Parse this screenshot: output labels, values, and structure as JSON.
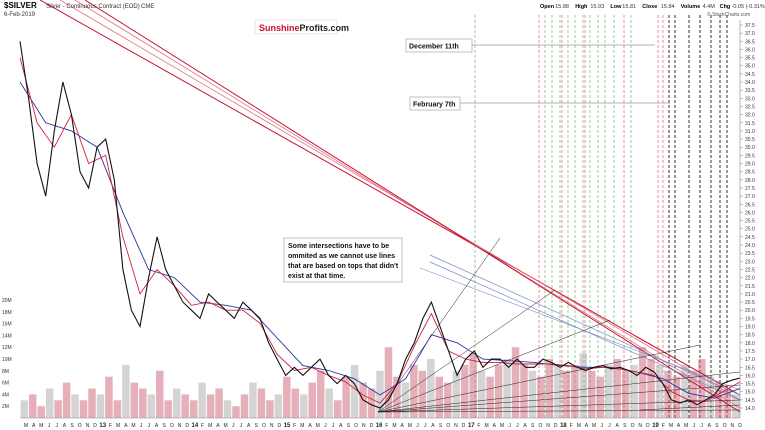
{
  "header": {
    "symbol": "$SILVER",
    "description": "Silver - Continuous Contract (EOD)",
    "exchange": "CME",
    "date": "6-Feb-2019",
    "stats": [
      {
        "label": "Open",
        "value": "15.88"
      },
      {
        "label": "High",
        "value": "15.93"
      },
      {
        "label": "Low",
        "value": "15.81"
      },
      {
        "label": "Close",
        "value": "15.84"
      },
      {
        "label": "Volume",
        "value": "4.4M"
      },
      {
        "label": "Chg",
        "value": "-0.05 (-0.31%)"
      }
    ],
    "copyright": "© StockCharts.com",
    "brand_part1": "Sunshine",
    "brand_part2": "Profits.com",
    "brand_color": "#c8102e"
  },
  "annotations": {
    "dec_label": "December 11th",
    "feb_label": "February 7th",
    "note_lines": [
      "Some intersections have to be",
      "ommited as we cannot use lines",
      "that are based on tops that didn't",
      "exist at that time."
    ]
  },
  "chart_data": {
    "type": "line",
    "title": "$SILVER",
    "subtitle": "Silver - Continuous Contract (EOD)",
    "y_ticks": [
      14.0,
      14.5,
      15.0,
      15.5,
      16.0,
      16.5,
      17.0,
      17.5,
      18.0,
      18.5,
      19.0,
      19.5,
      20.0,
      20.5,
      21.0,
      21.5,
      22.0,
      22.5,
      23.0,
      23.5,
      24.0,
      24.5,
      25.0,
      25.5,
      26.0,
      26.5,
      27.0,
      27.5,
      28.0,
      28.5,
      29.0,
      29.5,
      30.0,
      30.5,
      31.0,
      31.5,
      32.0,
      32.5,
      33.0,
      33.5,
      34.0,
      34.5,
      35.0,
      35.5,
      36.0,
      36.5,
      37.0,
      37.5
    ],
    "ylim": [
      14.0,
      37.5
    ],
    "volume_ticks": [
      "2M",
      "4M",
      "6M",
      "8M",
      "10M",
      "12M",
      "14M",
      "16M",
      "18M",
      "20M"
    ],
    "volume_lim": [
      0,
      20
    ],
    "x_tick_labels": [
      "M",
      "A",
      "M",
      "J",
      "J",
      "A",
      "S",
      "O",
      "N",
      "D",
      "13",
      "F",
      "M",
      "A",
      "M",
      "J",
      "J",
      "A",
      "S",
      "O",
      "N",
      "D",
      "14",
      "F",
      "M",
      "A",
      "M",
      "J",
      "J",
      "A",
      "S",
      "O",
      "N",
      "D",
      "15",
      "F",
      "M",
      "A",
      "M",
      "J",
      "J",
      "A",
      "S",
      "O",
      "N",
      "D",
      "16",
      "F",
      "M",
      "A",
      "M",
      "J",
      "J",
      "A",
      "S",
      "O",
      "N",
      "D",
      "17",
      "F",
      "M",
      "A",
      "M",
      "J",
      "J",
      "A",
      "S",
      "O",
      "N",
      "D",
      "18",
      "F",
      "M",
      "A",
      "M",
      "J",
      "J",
      "A",
      "S",
      "O",
      "N",
      "D",
      "19",
      "F",
      "M",
      "A",
      "M",
      "J",
      "J",
      "A",
      "S",
      "O",
      "N",
      "D"
    ],
    "x_year_labels": [
      "13",
      "14",
      "15",
      "16",
      "17",
      "18",
      "19"
    ],
    "price": {
      "x": [
        0,
        1,
        2,
        3,
        4,
        5,
        6,
        7,
        8,
        9,
        10,
        11,
        12,
        13,
        14,
        15,
        16,
        17,
        18,
        19,
        20,
        21,
        22,
        23,
        24,
        25,
        26,
        27,
        28,
        29,
        30,
        31,
        32,
        33,
        34,
        35,
        36,
        37,
        38,
        39,
        40,
        41,
        42,
        43,
        44,
        45,
        46,
        47,
        48,
        49,
        50,
        51,
        52,
        53,
        54,
        55,
        56,
        57,
        58,
        59,
        60,
        61,
        62,
        63,
        64,
        65,
        66,
        67,
        68,
        69,
        70,
        71,
        72,
        73,
        74,
        75,
        76,
        77,
        78,
        79,
        80,
        81,
        82,
        83,
        84
      ],
      "values": [
        36.5,
        33.0,
        29.0,
        27.0,
        31.0,
        34.0,
        32.0,
        28.5,
        27.5,
        30.0,
        30.5,
        28.0,
        22.5,
        20.0,
        19.0,
        22.0,
        24.5,
        22.5,
        21.5,
        20.5,
        20.0,
        19.5,
        21.0,
        20.5,
        20.0,
        19.5,
        20.5,
        20.0,
        19.5,
        18.0,
        17.0,
        16.0,
        16.5,
        16.0,
        16.5,
        17.0,
        16.0,
        15.5,
        16.0,
        15.5,
        14.5,
        14.2,
        14.0,
        14.5,
        15.5,
        17.0,
        18.0,
        19.5,
        20.5,
        19.0,
        17.5,
        16.0,
        17.0,
        17.5,
        16.5,
        17.0,
        17.0,
        16.5,
        17.0,
        16.5,
        16.5,
        17.0,
        16.8,
        16.5,
        16.8,
        16.5,
        16.3,
        16.5,
        16.6,
        16.4,
        16.5,
        16.3,
        16.0,
        16.5,
        16.2,
        15.5,
        14.5,
        14.3,
        14.5,
        14.2,
        14.5,
        14.8,
        15.5,
        15.7,
        15.84
      ]
    },
    "moving_average_short": {
      "x": [
        0,
        2,
        4,
        6,
        8,
        10,
        12,
        14,
        16,
        18,
        20,
        22,
        24,
        26,
        28,
        30,
        32,
        34,
        36,
        38,
        40,
        42,
        44,
        46,
        48,
        50,
        52,
        54,
        56,
        58,
        60,
        62,
        64,
        66,
        68,
        70,
        72,
        74,
        76,
        78,
        80,
        82,
        84
      ],
      "values": [
        35.5,
        31.5,
        30.0,
        32.0,
        29.0,
        29.5,
        24.5,
        21.0,
        22.5,
        21.5,
        20.3,
        20.5,
        20.0,
        20.0,
        19.2,
        17.3,
        16.3,
        16.5,
        16.0,
        15.6,
        14.8,
        14.3,
        15.5,
        17.8,
        19.8,
        17.5,
        17.0,
        16.8,
        16.8,
        16.7,
        16.7,
        16.7,
        16.6,
        16.4,
        16.5,
        16.4,
        16.2,
        16.0,
        15.0,
        14.5,
        14.4,
        15.0,
        15.6
      ]
    },
    "moving_average_long": {
      "x": [
        0,
        3,
        6,
        9,
        12,
        15,
        18,
        21,
        24,
        27,
        30,
        33,
        36,
        39,
        42,
        45,
        48,
        51,
        54,
        57,
        60,
        63,
        66,
        69,
        72,
        75,
        78,
        81,
        84
      ],
      "values": [
        34.0,
        31.5,
        31.0,
        30.0,
        26.0,
        22.5,
        22.0,
        20.5,
        20.3,
        20.0,
        18.3,
        16.6,
        16.3,
        15.8,
        14.8,
        15.8,
        18.5,
        18.0,
        17.0,
        16.9,
        16.8,
        16.6,
        16.5,
        16.5,
        16.2,
        15.8,
        14.9,
        14.6,
        15.2
      ]
    },
    "volume": {
      "description": "daily volume histogram, values in millions",
      "values": [
        3,
        4,
        2,
        5,
        3,
        6,
        4,
        3,
        5,
        4,
        7,
        3,
        9,
        6,
        5,
        4,
        8,
        3,
        5,
        4,
        3,
        6,
        4,
        5,
        3,
        2,
        4,
        6,
        5,
        3,
        4,
        7,
        5,
        4,
        6,
        8,
        5,
        3,
        7,
        9,
        6,
        5,
        8,
        12,
        7,
        6,
        9,
        8,
        10,
        7,
        6,
        8,
        9,
        11,
        8,
        7,
        9,
        10,
        12,
        9,
        8,
        7,
        10,
        9,
        8,
        9,
        11,
        8,
        7,
        9,
        10,
        8,
        9,
        12,
        10,
        9,
        8,
        7,
        9,
        8,
        10,
        7,
        6,
        5,
        4
      ]
    },
    "colors": {
      "price": "#111111",
      "ma_short": "#d02040",
      "ma_long": "#3030a0",
      "trend_red": "#c8102e",
      "trend_pink": "#e07080",
      "trend_black": "#222222",
      "fan_blue": "#7a8cc8",
      "green_cycle": "#4caf50",
      "red_cycle": "#e04050",
      "black_cycle": "#000000",
      "volume_bar": "#d07080",
      "volume_bar_alt": "#b0b0b0",
      "label_line": "#9a9a9a"
    },
    "grid": false
  }
}
